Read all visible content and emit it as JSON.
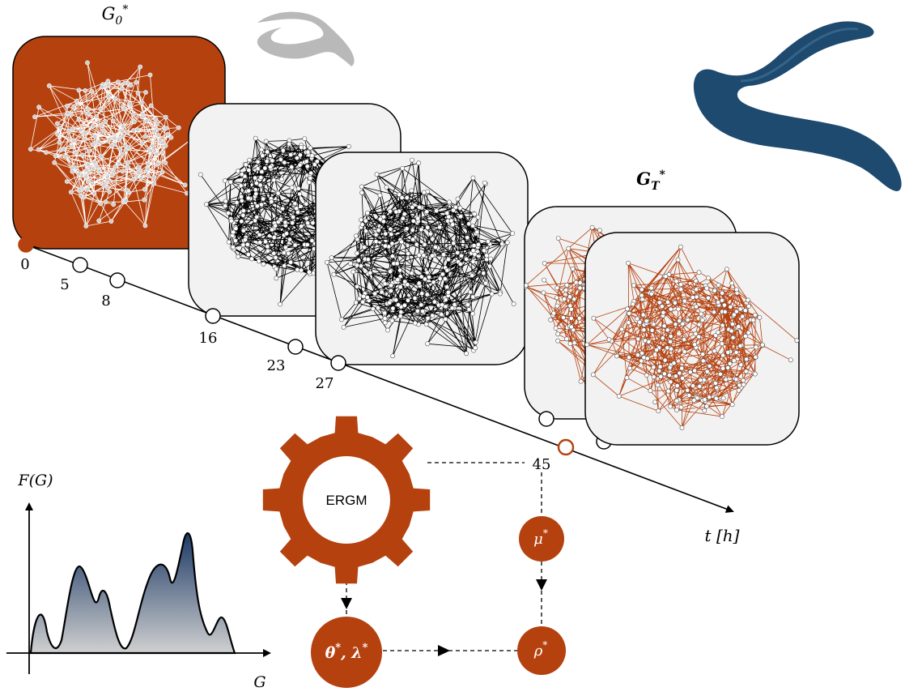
{
  "graphs": {
    "initial_label": "G₀*",
    "final_label": "G_T*"
  },
  "timeline": {
    "axis_label": "t [h]",
    "points": [
      "0",
      "5",
      "8",
      "16",
      "23",
      "27",
      "45"
    ]
  },
  "ergm": {
    "gear_label": "ERGM"
  },
  "nodes": {
    "theta_lambda": "θ*, λ*",
    "mu": "μ*",
    "rho": "ρ*"
  },
  "distribution": {
    "y_label": "F(G)",
    "x_label": "G"
  },
  "colors": {
    "accent": "#b5410f",
    "worm_light": "#b8b8b8",
    "worm_dark": "#1d4a6e",
    "panel_bg": "#f2f2f2",
    "dist_top": "#1d3a66",
    "dist_bottom": "#cfcfcf"
  }
}
